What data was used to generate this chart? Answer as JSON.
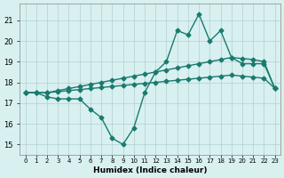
{
  "xlabel": "Humidex (Indice chaleur)",
  "x": [
    0,
    1,
    2,
    3,
    4,
    5,
    6,
    7,
    8,
    9,
    10,
    11,
    12,
    13,
    14,
    15,
    16,
    17,
    18,
    19,
    20,
    21,
    22,
    23
  ],
  "line1": [
    17.5,
    17.5,
    17.3,
    17.2,
    17.2,
    17.2,
    16.7,
    16.3,
    15.3,
    15.0,
    15.8,
    17.5,
    18.5,
    19.0,
    20.5,
    20.3,
    21.3,
    20.0,
    20.5,
    19.2,
    18.9,
    18.9,
    18.9,
    17.7
  ],
  "line2": [
    17.5,
    17.5,
    17.5,
    17.6,
    17.7,
    17.8,
    17.9,
    18.0,
    18.1,
    18.2,
    18.3,
    18.4,
    18.5,
    18.6,
    18.7,
    18.8,
    18.9,
    19.0,
    19.1,
    19.2,
    19.15,
    19.1,
    19.0,
    17.7
  ],
  "line3": [
    17.5,
    17.5,
    17.5,
    17.55,
    17.6,
    17.65,
    17.7,
    17.75,
    17.8,
    17.85,
    17.9,
    17.95,
    18.0,
    18.05,
    18.1,
    18.15,
    18.2,
    18.25,
    18.3,
    18.35,
    18.3,
    18.25,
    18.2,
    17.7
  ],
  "color": "#1a7a6e",
  "bg_color": "#d8f0f0",
  "grid_color": "#b0d0d0",
  "ylim": [
    14.5,
    21.8
  ],
  "yticks": [
    15,
    16,
    17,
    18,
    19,
    20,
    21
  ],
  "xlim": [
    -0.5,
    23.5
  ],
  "marker": "D",
  "markersize": 2.5,
  "linewidth": 1.0
}
